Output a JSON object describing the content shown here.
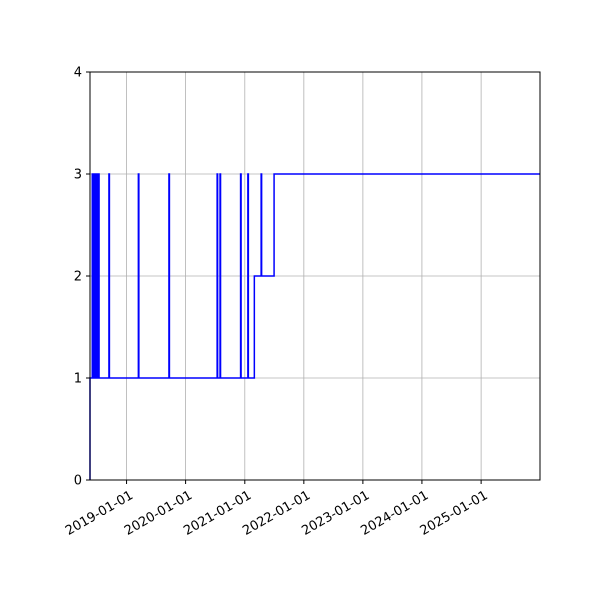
{
  "chart_data": {
    "type": "line",
    "title": "",
    "xlabel": "",
    "ylabel": "",
    "x_axis_type": "date",
    "xlim": [
      "2018-05-20",
      "2025-12-31"
    ],
    "ylim": [
      0,
      4
    ],
    "grid": true,
    "colors": {
      "series": "#0000ff",
      "grid": "#b0b0b0",
      "axis": "#000000"
    },
    "x_ticks": [
      "2019-01-01",
      "2020-01-01",
      "2021-01-01",
      "2022-01-01",
      "2023-01-01",
      "2024-01-01",
      "2025-01-01"
    ],
    "y_ticks": [
      0,
      1,
      2,
      3,
      4
    ],
    "series": [
      {
        "step": "post",
        "x": [
          "2018-05-20",
          "2018-06-01",
          "2018-06-03",
          "2018-06-10",
          "2018-06-12",
          "2018-06-17",
          "2018-06-18",
          "2018-06-24",
          "2018-06-25",
          "2018-07-01",
          "2018-07-02",
          "2018-07-08",
          "2018-07-09",
          "2018-07-15",
          "2018-09-14",
          "2018-09-17",
          "2019-03-15",
          "2019-03-18",
          "2019-09-20",
          "2019-09-23",
          "2020-07-14",
          "2020-07-17",
          "2020-08-01",
          "2020-08-04",
          "2020-12-06",
          "2020-12-09",
          "2021-01-20",
          "2021-01-23",
          "2021-03-01",
          "2021-04-01",
          "2021-04-12",
          "2021-04-15",
          "2021-07-01",
          "2025-12-31"
        ],
        "y": [
          1,
          1,
          3,
          1,
          3,
          1,
          3,
          1,
          3,
          1,
          3,
          1,
          3,
          1,
          3,
          1,
          3,
          1,
          3,
          1,
          3,
          1,
          3,
          1,
          3,
          1,
          3,
          1,
          2,
          2,
          3,
          2,
          3,
          3
        ]
      }
    ]
  }
}
